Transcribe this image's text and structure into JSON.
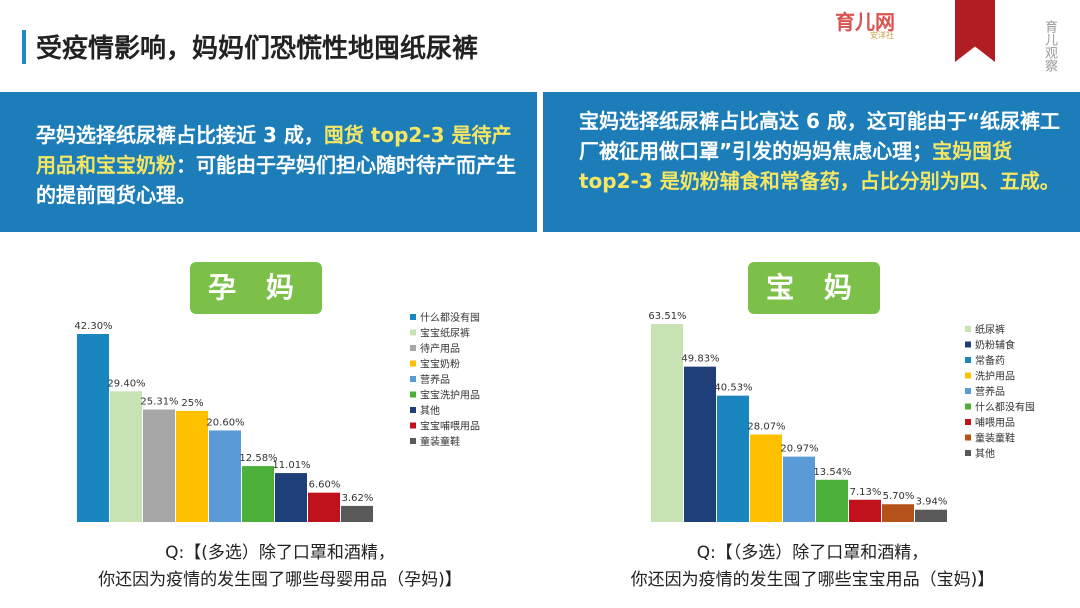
{
  "header": {
    "title": "受疫情影响，妈妈们恐慌性地囤纸尿裤",
    "logo_text": "育儿网",
    "logo_sub": "安洋社",
    "watermark": "育儿观察"
  },
  "panels": {
    "left_text_1": "孕妈选择纸尿裤占比接近 3 成，",
    "left_text_hl": "囤货 top2-3 是待产用品和宝宝奶粉",
    "left_text_2": "：可能由于孕妈们担心随时待产而产生的提前囤货心理。",
    "right_text_1": "宝妈选择纸尿裤占比高达 6 成，这可能由于“纸尿裤工厂被征用做口罩”引发的妈妈焦虑心理；",
    "right_text_hl": "宝妈囤货 top2-3 是奶粉辅食和常备药，占比分别为四、五成。"
  },
  "chart_data": [
    {
      "type": "bar",
      "label": "孕 妈",
      "categories": [
        "什么都没有囤",
        "宝宝纸尿裤",
        "待产用品",
        "宝宝奶粉",
        "营养品",
        "宝宝洗护用品",
        "其他",
        "宝宝哺喂用品",
        "童装童鞋"
      ],
      "values": [
        42.3,
        29.4,
        25.31,
        25,
        20.6,
        12.58,
        11.01,
        6.6,
        3.62
      ],
      "value_labels": [
        "42.30%",
        "29.40%",
        "25.31%",
        "25%",
        "20.60%",
        "12.58%",
        "11.01%",
        "6.60%",
        "3.62%"
      ],
      "colors": [
        "#1a86c0",
        "#c8e3b3",
        "#a6a6a6",
        "#ffc000",
        "#5b9bd5",
        "#4caf3a",
        "#1f3f7a",
        "#c0121c",
        "#595959"
      ],
      "question_1": "Q:【(多选）除了口罩和酒精，",
      "question_2": "你还因为疫情的发生囤了哪些母婴用品（孕妈)】"
    },
    {
      "type": "bar",
      "label": "宝 妈",
      "categories": [
        "纸尿裤",
        "奶粉辅食",
        "常备药",
        "洗护用品",
        "营养品",
        "什么都没有囤",
        "哺喂用品",
        "童装童鞋",
        "其他"
      ],
      "values": [
        63.51,
        49.83,
        40.53,
        28.07,
        20.97,
        13.54,
        7.13,
        5.7,
        3.94
      ],
      "value_labels": [
        "63.51%",
        "49.83%",
        "40.53%",
        "28.07%",
        "20.97%",
        "13.54%",
        "7.13%",
        "5.70%",
        "3.94%"
      ],
      "colors": [
        "#c8e3b3",
        "#1f3f7a",
        "#1a86c0",
        "#ffc000",
        "#5b9bd5",
        "#4caf3a",
        "#c0121c",
        "#b5521b",
        "#595959"
      ],
      "question_1": "Q:【（多选）除了口罩和酒精，",
      "question_2": "你还因为疫情的发生囤了哪些宝宝用品（宝妈)】"
    }
  ]
}
